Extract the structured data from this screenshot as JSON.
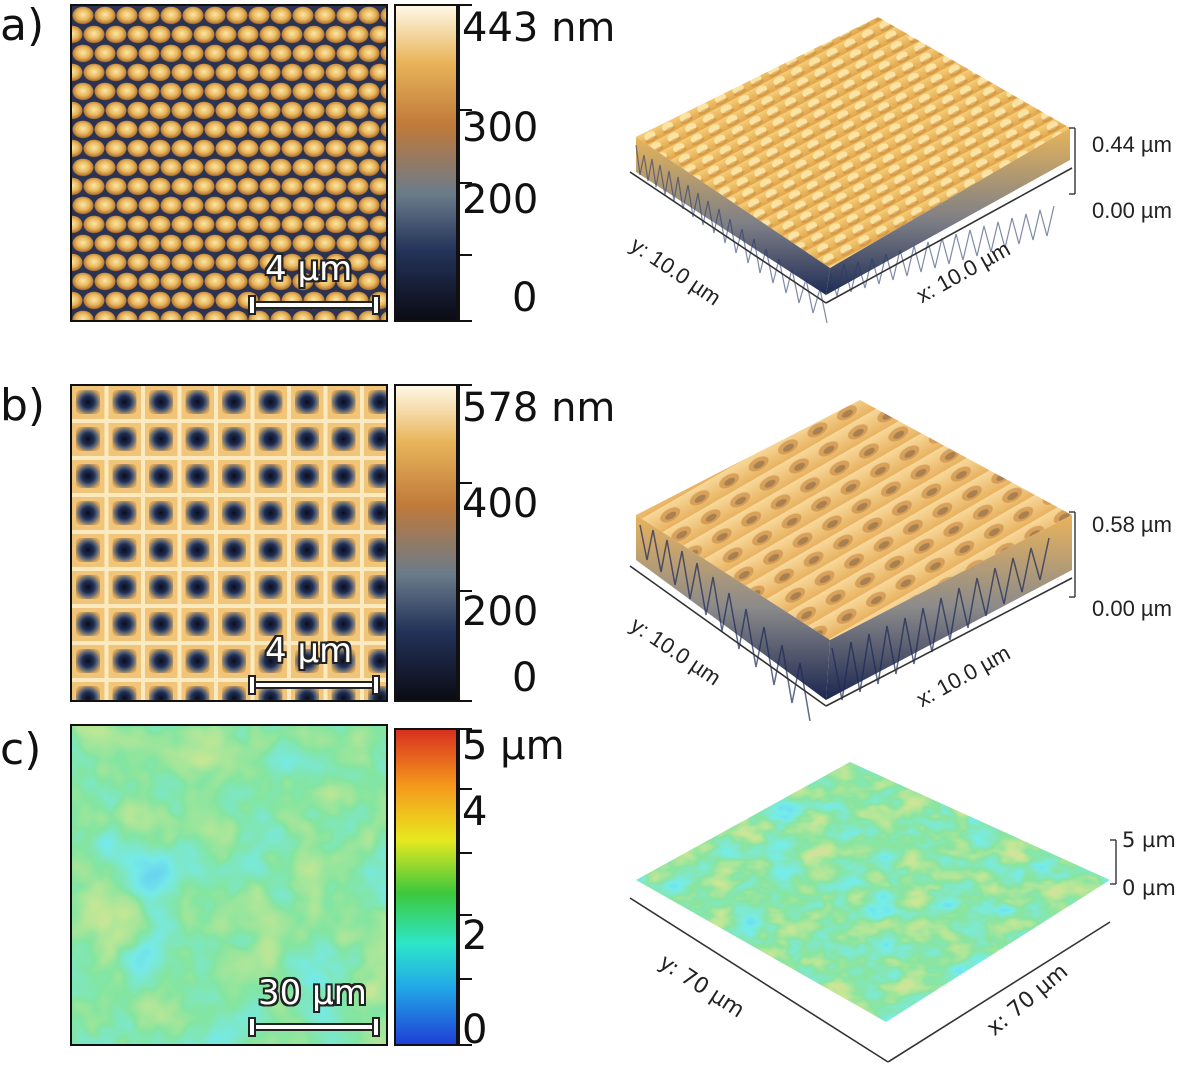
{
  "panels": [
    {
      "label": "a)",
      "colorbar": {
        "max_label": "443 nm",
        "ticks": [
          "300",
          "200",
          "0"
        ]
      },
      "scalebar_label": "4 µm",
      "surface": {
        "z_top": "0.44 µm",
        "z_bottom": "0.00 µm",
        "y_label": "y: 10.0 µm",
        "x_label": "x: 10.0 µm"
      },
      "colormap": [
        "#0b0b14",
        "#23335a",
        "#6a7b8a",
        "#c07a3a",
        "#e8b45a",
        "#fff8e6"
      ],
      "pattern": "hexagonal-dots"
    },
    {
      "label": "b)",
      "colorbar": {
        "max_label": "578 nm",
        "ticks": [
          "400",
          "200",
          "0"
        ]
      },
      "scalebar_label": "4 µm",
      "surface": {
        "z_top": "0.58 µm",
        "z_bottom": "0.00 µm",
        "y_label": "y: 10.0 µm",
        "x_label": "x: 10.0 µm"
      },
      "colormap": [
        "#0b0b14",
        "#23335a",
        "#6a7b8a",
        "#c07a3a",
        "#e8b45a",
        "#fff8e6"
      ],
      "pattern": "square-wells"
    },
    {
      "label": "c)",
      "colorbar": {
        "max_label": "5 µm",
        "ticks": [
          "4",
          "2",
          "0"
        ]
      },
      "scalebar_label": "30 µm",
      "surface": {
        "z_top": "5 µm",
        "z_bottom": "0 µm",
        "y_label": "y: 70 µm",
        "x_label": "x: 70 µm"
      },
      "colormap": [
        "#1f3fd6",
        "#22a8e8",
        "#2ee6c8",
        "#3cc83c",
        "#e8e820",
        "#f59a1c",
        "#d8301e"
      ],
      "pattern": "random-rough"
    }
  ]
}
